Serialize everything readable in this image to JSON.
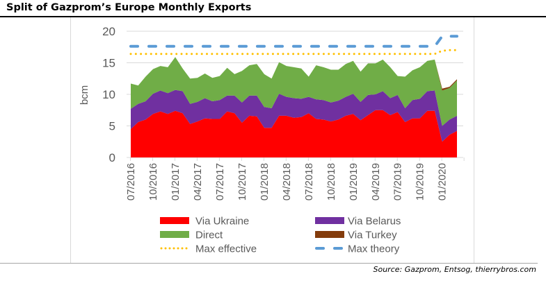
{
  "title": "Split of Gazprom’s Europe Monthly Exports",
  "source": "Source: Gazprom, Entsog, thierrybros.com",
  "chart_data": {
    "type": "area",
    "stacked": true,
    "ylabel": "bcm",
    "ylim": [
      0,
      20
    ],
    "yticks": [
      "0",
      "5",
      "10",
      "15",
      "20"
    ],
    "grid": true,
    "legend_placement": "bottom",
    "x": [
      "07/2016",
      "08/2016",
      "09/2016",
      "10/2016",
      "11/2016",
      "12/2016",
      "01/2017",
      "02/2017",
      "03/2017",
      "04/2017",
      "05/2017",
      "06/2017",
      "07/2017",
      "08/2017",
      "09/2017",
      "10/2017",
      "11/2017",
      "12/2017",
      "01/2018",
      "02/2018",
      "03/2018",
      "04/2018",
      "05/2018",
      "06/2018",
      "07/2018",
      "08/2018",
      "09/2018",
      "10/2018",
      "11/2018",
      "12/2018",
      "01/2019",
      "02/2019",
      "03/2019",
      "04/2019",
      "05/2019",
      "06/2019",
      "07/2019",
      "08/2019",
      "09/2019",
      "10/2019",
      "11/2019",
      "12/2019",
      "01/2020",
      "02/2020",
      "03/2020"
    ],
    "xtick_labels": [
      "07/2016",
      "10/2016",
      "01/2017",
      "04/2017",
      "07/2017",
      "10/2017",
      "01/2018",
      "04/2018",
      "07/2018",
      "10/2018",
      "01/2019",
      "04/2019",
      "07/2019",
      "10/2019",
      "01/2020"
    ],
    "series": [
      {
        "name": "Via Ukraine",
        "color": "#ff0000",
        "values": [
          4.5,
          5.6,
          6.0,
          6.9,
          7.3,
          6.9,
          7.4,
          7.0,
          5.3,
          5.7,
          6.2,
          6.1,
          6.1,
          7.3,
          7.0,
          5.5,
          6.6,
          6.5,
          4.7,
          4.7,
          6.6,
          6.6,
          6.3,
          6.4,
          7.0,
          6.1,
          6.0,
          5.7,
          6.0,
          6.6,
          6.9,
          5.9,
          6.7,
          7.5,
          7.5,
          6.7,
          7.2,
          5.6,
          6.2,
          6.2,
          7.4,
          7.4,
          2.5,
          3.6,
          4.2
        ]
      },
      {
        "name": "Via Belarus",
        "color": "#7030a0",
        "values": [
          3.2,
          2.9,
          2.9,
          3.2,
          3.3,
          3.3,
          3.3,
          3.5,
          3.2,
          3.1,
          3.2,
          2.8,
          3.0,
          2.5,
          2.8,
          3.2,
          3.2,
          3.3,
          3.3,
          3.1,
          3.5,
          3.0,
          3.1,
          2.9,
          2.6,
          3.1,
          3.1,
          3.0,
          3.0,
          3.0,
          3.2,
          2.9,
          3.2,
          2.5,
          3.0,
          2.7,
          2.7,
          2.2,
          2.9,
          3.1,
          3.1,
          3.2,
          2.5,
          2.4,
          2.4
        ]
      },
      {
        "name": "Direct",
        "color": "#70ad47",
        "values": [
          4.0,
          2.9,
          3.9,
          3.9,
          3.9,
          4.1,
          5.2,
          3.6,
          4.0,
          3.8,
          3.9,
          3.7,
          3.8,
          4.4,
          3.4,
          5.0,
          4.8,
          5.0,
          5.2,
          4.7,
          5.0,
          4.9,
          4.9,
          4.8,
          3.2,
          5.4,
          5.2,
          5.2,
          4.9,
          5.2,
          5.2,
          4.8,
          5.0,
          4.9,
          5.0,
          4.9,
          3.0,
          5.0,
          4.7,
          5.0,
          4.8,
          4.9,
          5.6,
          5.0,
          5.6
        ]
      },
      {
        "name": "Via Turkey",
        "color": "#843c0c",
        "values": [
          0,
          0,
          0,
          0,
          0,
          0,
          0,
          0,
          0,
          0,
          0,
          0,
          0,
          0,
          0,
          0,
          0,
          0,
          0,
          0,
          0,
          0,
          0,
          0,
          0,
          0,
          0,
          0,
          0,
          0,
          0,
          0,
          0,
          0,
          0,
          0,
          0,
          0,
          0,
          0,
          0,
          0,
          0.3,
          0.2,
          0.2
        ]
      }
    ],
    "lines": [
      {
        "name": "Max effective",
        "color": "#ffc000",
        "style": "dotted",
        "values": [
          16.4,
          16.4,
          16.4,
          16.4,
          16.4,
          16.4,
          16.4,
          16.4,
          16.4,
          16.4,
          16.4,
          16.4,
          16.4,
          16.4,
          16.4,
          16.4,
          16.4,
          16.4,
          16.4,
          16.4,
          16.4,
          16.4,
          16.4,
          16.4,
          16.4,
          16.4,
          16.4,
          16.4,
          16.4,
          16.4,
          16.4,
          16.4,
          16.4,
          16.4,
          16.4,
          16.4,
          16.4,
          16.4,
          16.4,
          16.4,
          16.4,
          16.4,
          16.9,
          17.0,
          17.0
        ]
      },
      {
        "name": "Max theory",
        "color": "#5b9bd5",
        "style": "dashed",
        "values": [
          17.6,
          17.6,
          17.6,
          17.6,
          17.6,
          17.6,
          17.6,
          17.6,
          17.6,
          17.6,
          17.6,
          17.6,
          17.6,
          17.6,
          17.6,
          17.6,
          17.6,
          17.6,
          17.6,
          17.6,
          17.6,
          17.6,
          17.6,
          17.6,
          17.6,
          17.6,
          17.6,
          17.6,
          17.6,
          17.6,
          17.6,
          17.6,
          17.6,
          17.6,
          17.6,
          17.6,
          17.6,
          17.6,
          17.6,
          17.6,
          17.6,
          17.6,
          19.2,
          19.2,
          19.2
        ]
      }
    ]
  }
}
